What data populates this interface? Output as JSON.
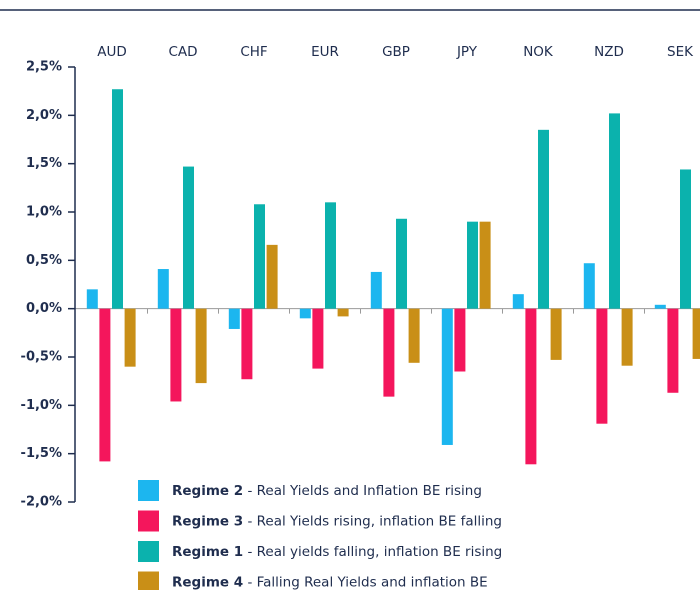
{
  "chart_data": {
    "type": "bar",
    "categories": [
      "AUD",
      "CAD",
      "CHF",
      "EUR",
      "GBP",
      "JPY",
      "NOK",
      "NZD",
      "SEK"
    ],
    "series": [
      {
        "name": "Regime 2 - Real Yields and Inflation BE rising",
        "color": "#1cb6ef",
        "values": [
          0.2,
          0.41,
          -0.21,
          -0.1,
          0.38,
          -1.41,
          0.15,
          0.47,
          0.04
        ]
      },
      {
        "name": "Regime 3 - Real Yields rising, inflation BE falling",
        "color": "#f4165c",
        "values": [
          -1.58,
          -0.96,
          -0.73,
          -0.62,
          -0.91,
          -0.65,
          -1.61,
          -1.19,
          -0.87
        ]
      },
      {
        "name": "Regime 1 - Real yields falling, inflation BE rising",
        "color": "#0bb2ad",
        "values": [
          2.27,
          1.47,
          1.08,
          1.1,
          0.93,
          0.9,
          1.85,
          2.02,
          1.44
        ]
      },
      {
        "name": "Regime 4 - Falling Real Yields and inflation BE",
        "color": "#c98f17",
        "values": [
          -0.6,
          -0.77,
          0.66,
          -0.08,
          -0.56,
          0.9,
          -0.53,
          -0.59,
          -0.52
        ]
      }
    ],
    "ylim": [
      -2.0,
      2.5
    ],
    "yticks": [
      {
        "value": 2.5,
        "label": "2,5%"
      },
      {
        "value": 2.0,
        "label": "2,0%"
      },
      {
        "value": 1.5,
        "label": "1,5%"
      },
      {
        "value": 1.0,
        "label": "1,0%"
      },
      {
        "value": 0.5,
        "label": "0,5%"
      },
      {
        "value": 0.0,
        "label": "0,0%"
      },
      {
        "value": -0.5,
        "label": "-0,5%"
      },
      {
        "value": -1.0,
        "label": "-1,0%"
      },
      {
        "value": -1.5,
        "label": "-1,5%"
      },
      {
        "value": -2.0,
        "label": "-2,0%"
      }
    ],
    "legend": "bottom-left"
  }
}
